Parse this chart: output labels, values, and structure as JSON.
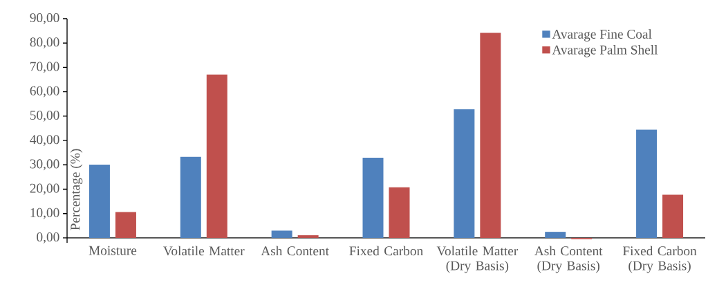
{
  "chart_data": {
    "type": "bar",
    "ylabel": "Percentage (%)",
    "categories": [
      "Moisture",
      "Volatile Matter",
      "Ash Content",
      "Fixed Carbon",
      "Volatile Matter  (Dry Basis)",
      "Ash Content (Dry Basis)",
      "Fixed Carbon (Dry Basis)"
    ],
    "series": [
      {
        "name": "Avarage Fine Coal",
        "color": "#4f81bd",
        "values": [
          30.1,
          33.3,
          3.0,
          32.9,
          52.8,
          2.5,
          44.4
        ]
      },
      {
        "name": "Avarage Palm Shell",
        "color": "#c0504d",
        "values": [
          10.6,
          67.1,
          1.1,
          20.8,
          84.2,
          -0.5,
          17.7
        ]
      }
    ],
    "ylim": [
      -2,
      90
    ],
    "yticks": [
      {
        "value": 0,
        "label": "0,00"
      },
      {
        "value": 10,
        "label": "10,00"
      },
      {
        "value": 20,
        "label": "20,00"
      },
      {
        "value": 30,
        "label": "30,00"
      },
      {
        "value": 40,
        "label": "40,00"
      },
      {
        "value": 50,
        "label": "50,00"
      },
      {
        "value": 60,
        "label": "60,00"
      },
      {
        "value": 70,
        "label": "70,00"
      },
      {
        "value": 80,
        "label": "80,00"
      },
      {
        "value": 90,
        "label": "90,00"
      }
    ],
    "grid": false,
    "legend": "top right"
  }
}
